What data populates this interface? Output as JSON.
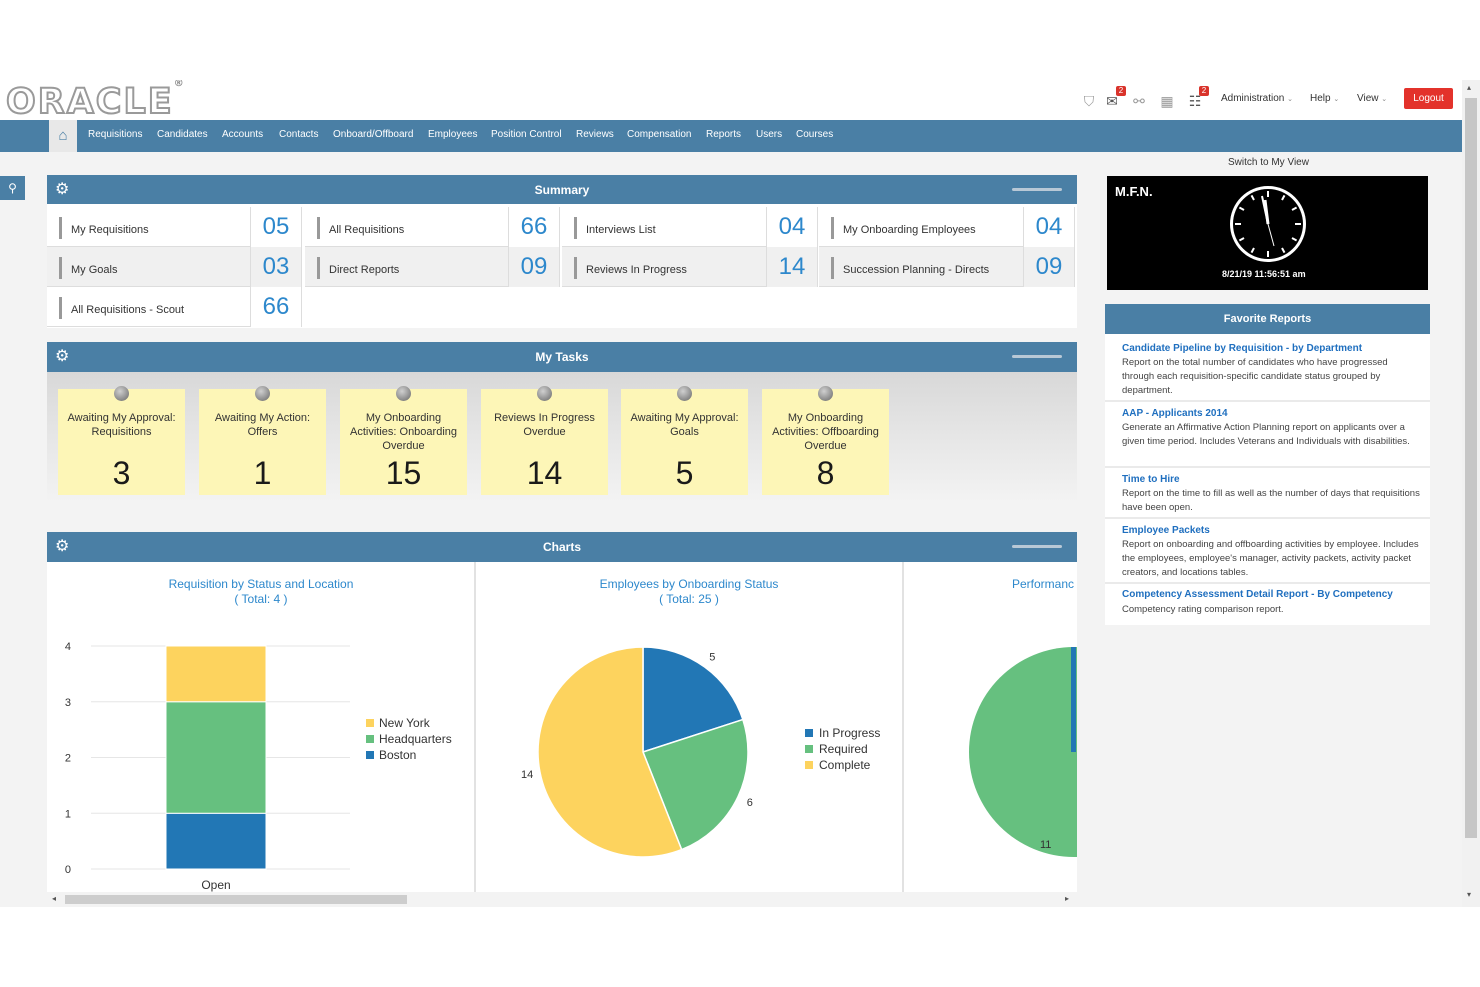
{
  "header": {
    "logo": "ORACLE",
    "logo_mark": "®",
    "icons": [
      {
        "name": "bookmark-icon",
        "glyph": "⛉",
        "badge": ""
      },
      {
        "name": "tasks-alert-icon",
        "glyph": "✉",
        "badge": "2"
      },
      {
        "name": "link-icon",
        "glyph": "⚯",
        "badge": ""
      },
      {
        "name": "report-icon",
        "glyph": "▦",
        "badge": ""
      },
      {
        "name": "checklist-icon",
        "glyph": "☷",
        "badge": "2"
      }
    ],
    "menus": {
      "administration": "Administration",
      "help": "Help",
      "view": "View"
    },
    "caret": "⌄",
    "logout": "Logout"
  },
  "nav": {
    "home_icon": "⌂",
    "items": [
      "Requisitions",
      "Candidates",
      "Accounts",
      "Contacts",
      "Onboard/Offboard",
      "Employees",
      "Position Control",
      "Reviews",
      "Compensation",
      "Reports",
      "Users",
      "Courses"
    ]
  },
  "search_icon": "⚲",
  "gear_icon": "⚙",
  "summary": {
    "title": "Summary",
    "rows": [
      [
        {
          "label": "My Requisitions",
          "value": "05"
        },
        {
          "label": "All Requisitions",
          "value": "66"
        },
        {
          "label": "Interviews List",
          "value": "04"
        },
        {
          "label": "My Onboarding Employees",
          "value": "04"
        }
      ],
      [
        {
          "label": "My Goals",
          "value": "03"
        },
        {
          "label": "Direct Reports",
          "value": "09"
        },
        {
          "label": "Reviews In Progress",
          "value": "14"
        },
        {
          "label": "Succession Planning - Directs",
          "value": "09"
        }
      ],
      [
        {
          "label": "All Requisitions - Scout",
          "value": "66"
        }
      ]
    ]
  },
  "tasks": {
    "title": "My Tasks",
    "notes": [
      {
        "label": "Awaiting My Approval: Requisitions",
        "count": "3"
      },
      {
        "label": "Awaiting My Action: Offers",
        "count": "1"
      },
      {
        "label": "My Onboarding Activities: Onboarding Overdue",
        "count": "15"
      },
      {
        "label": "Reviews In Progress Overdue",
        "count": "14"
      },
      {
        "label": "Awaiting My Approval: Goals",
        "count": "5"
      },
      {
        "label": "My Onboarding Activities: Offboarding Overdue",
        "count": "8"
      }
    ]
  },
  "charts": {
    "title": "Charts",
    "third_title": "Performanc",
    "third_label": "11"
  },
  "colors": {
    "new_york": "#fdd35e",
    "headquarters": "#66c07f",
    "boston": "#2277b5",
    "in_progress": "#2277b5",
    "required": "#66c07f",
    "complete": "#fdd35e"
  },
  "chart_data": [
    {
      "type": "bar",
      "title": "Requisition by Status and Location",
      "subtitle": "( Total: 4 )",
      "categories": [
        "Open"
      ],
      "series": [
        {
          "name": "Boston",
          "values": [
            1
          ]
        },
        {
          "name": "Headquarters",
          "values": [
            2
          ]
        },
        {
          "name": "New York",
          "values": [
            1
          ]
        }
      ],
      "ylim": [
        0,
        4
      ],
      "yticks": [
        "0",
        "1",
        "2",
        "3",
        "4"
      ],
      "stacked": true,
      "legend": [
        "New York",
        "Headquarters",
        "Boston"
      ]
    },
    {
      "type": "pie",
      "title": "Employees by Onboarding Status",
      "subtitle": "( Total: 25 )",
      "slices": [
        {
          "name": "In Progress",
          "value": 5
        },
        {
          "name": "Required",
          "value": 6
        },
        {
          "name": "Complete",
          "value": 14
        }
      ],
      "legend": [
        "In Progress",
        "Required",
        "Complete"
      ]
    }
  ],
  "right": {
    "switch_view": "Switch to My View",
    "clock_label": "M.F.N.",
    "clock_time": "8/21/19 11:56:51 am",
    "favorites_title": "Favorite Reports",
    "favorites": [
      {
        "title": "Candidate Pipeline by Requisition - by Department",
        "desc": "Report on the total number of candidates who have progressed through each requisition-specific candidate status grouped by department."
      },
      {
        "title": "AAP - Applicants 2014",
        "desc": "Generate an Affirmative Action Planning report on applicants over a given time period. Includes Veterans and Individuals with disabilities."
      },
      {
        "title": "Time to Hire",
        "desc": "Report on the time to fill as well as the number of days that requisitions have been open."
      },
      {
        "title": "Employee Packets",
        "desc": "Report on onboarding and offboarding activities by employee. Includes the employees, employee's manager, activity packets, activity packet creators, and locations tables."
      },
      {
        "title": "Competency Assessment Detail Report - By Competency",
        "desc": "Competency rating comparison report."
      }
    ]
  }
}
